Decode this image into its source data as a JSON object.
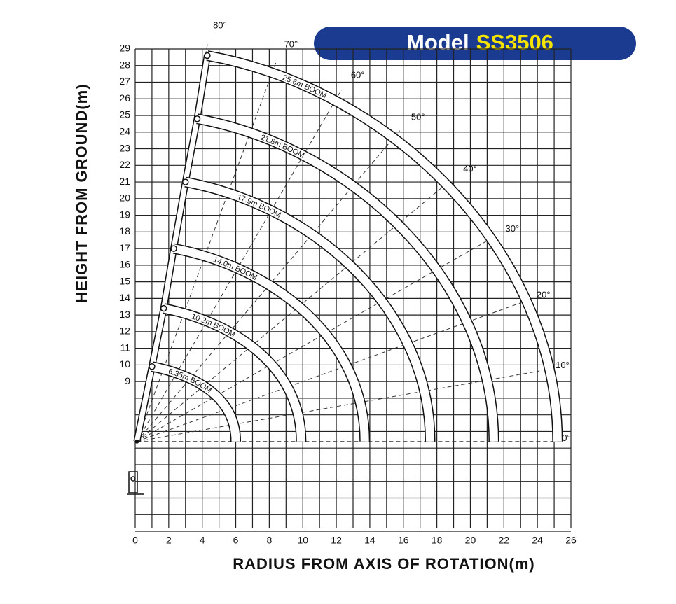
{
  "header": {
    "prefix": "Model",
    "model": "SS3506"
  },
  "chart_data": {
    "type": "crane-range",
    "x_label": "RADIUS FROM AXIS OF ROTATION(m)",
    "y_label": "HEIGHT FROM GROUND(m)",
    "xlim": [
      0,
      26
    ],
    "ylim": [
      0,
      29
    ],
    "xticks": [
      0,
      2,
      4,
      6,
      8,
      10,
      12,
      14,
      16,
      18,
      20,
      22,
      24,
      26
    ],
    "yticks": [
      9,
      10,
      11,
      12,
      13,
      14,
      15,
      16,
      17,
      18,
      19,
      20,
      21,
      22,
      23,
      24,
      25,
      26,
      27,
      28,
      29
    ],
    "grid": true,
    "pivot": [
      0.1,
      5.4
    ],
    "booms": [
      {
        "label": "6.35m BOOM",
        "top": [
          1.0,
          9.9
        ],
        "reach": 6.0
      },
      {
        "label": "10.2m BOOM",
        "top": [
          1.7,
          13.4
        ],
        "reach": 9.9
      },
      {
        "label": "14.0m BOOM",
        "top": [
          2.3,
          17.0
        ],
        "reach": 13.7
      },
      {
        "label": "17.9m BOOM",
        "top": [
          3.0,
          21.0
        ],
        "reach": 17.6
      },
      {
        "label": "21.8m BOOM",
        "top": [
          3.7,
          24.8
        ],
        "reach": 21.4
      },
      {
        "label": "25.6m BOOM",
        "top": [
          4.3,
          28.6
        ],
        "reach": 25.2
      }
    ],
    "angles": [
      {
        "value": 0,
        "label": "0°"
      },
      {
        "value": 10,
        "label": "10°"
      },
      {
        "value": 20,
        "label": "20°"
      },
      {
        "value": 30,
        "label": "30°"
      },
      {
        "value": 40,
        "label": "40°"
      },
      {
        "value": 50,
        "label": "50°"
      },
      {
        "value": 60,
        "label": "60°"
      },
      {
        "value": 70,
        "label": "70°"
      },
      {
        "value": 80,
        "label": "80°"
      }
    ]
  }
}
